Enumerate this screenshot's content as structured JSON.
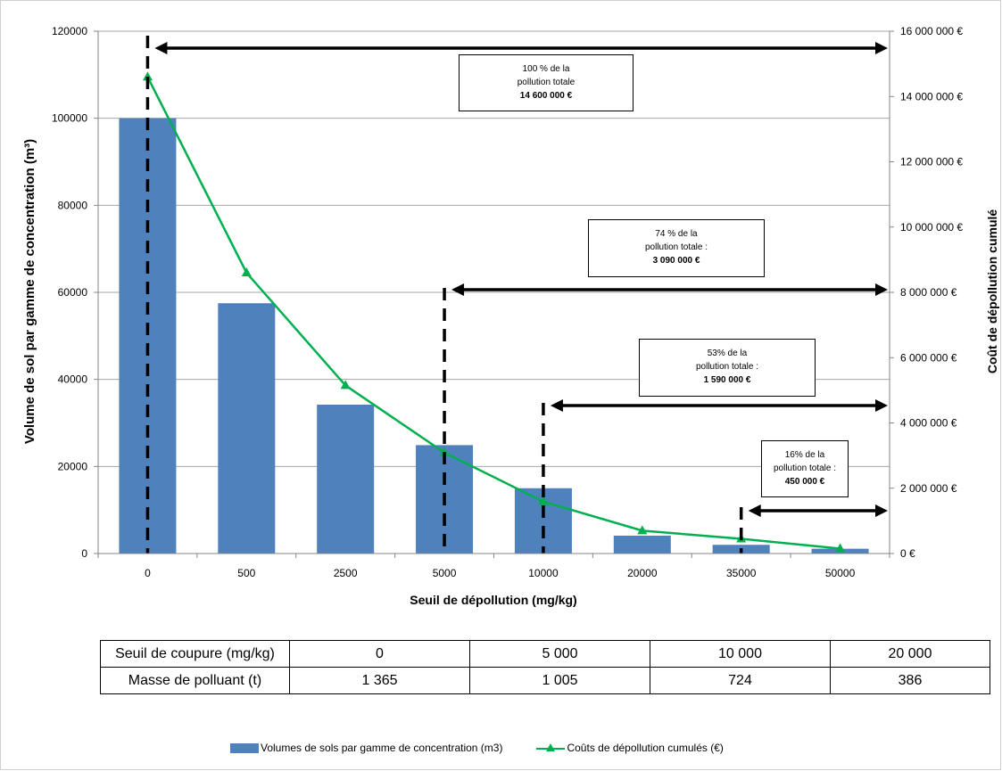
{
  "chart_data": {
    "type": "bar",
    "categories": [
      "0",
      "500",
      "2500",
      "5000",
      "10000",
      "20000",
      "35000",
      "50000"
    ],
    "series": [
      {
        "name": "Volumes de sols par gamme de concentration (m3)",
        "axis": "left",
        "type": "bar",
        "color": "#4f81bd",
        "values": [
          100000,
          57500,
          34200,
          24900,
          15000,
          4100,
          2000,
          1100
        ]
      },
      {
        "name": "Coûts de dépollution cumulés (€)",
        "axis": "right",
        "type": "line",
        "color": "#00b050",
        "values": [
          14600000,
          8600000,
          5150000,
          3090000,
          1590000,
          700000,
          450000,
          150000
        ]
      }
    ],
    "xlabel": "Seuil de  dépollution  (mg/kg)",
    "ylabel_left": "Volume de sol par gamme de concentration  (m³)",
    "ylabel_right": "Coût de dépollution cumulé",
    "ylim_left": [
      0,
      120000
    ],
    "yticks_left": [
      "0",
      "20000",
      "40000",
      "60000",
      "80000",
      "100000",
      "120000"
    ],
    "ylim_right": [
      0,
      16000000
    ],
    "yticks_right": [
      "0 €",
      "2 000 000 €",
      "4 000 000 €",
      "6 000 000 €",
      "8 000 000 €",
      "10 000 000 €",
      "12 000 000 €",
      "14 000 000 €",
      "16 000 000 €"
    ],
    "grid": true,
    "legend_position": "bottom",
    "annotations": [
      {
        "line1": "100 % de la",
        "line2": "pollution totale",
        "amount": "14 600 000 €",
        "from_category": "0"
      },
      {
        "line1": "74 % de la",
        "line2": "pollution totale :",
        "amount": "3 090 000 €",
        "from_category": "5000"
      },
      {
        "line1": "53% de la",
        "line2": "pollution totale :",
        "amount": "1 590 000 €",
        "from_category": "10000"
      },
      {
        "line1": "16% de la",
        "line2": "pollution totale :",
        "amount": "450 000 €",
        "from_category": "35000"
      }
    ]
  },
  "table": {
    "rows": [
      {
        "label": "Seuil de coupure (mg/kg)",
        "values": [
          "0",
          "5 000",
          "10 000",
          "20 000"
        ]
      },
      {
        "label": "Masse de polluant (t)",
        "values": [
          "1 365",
          "1 005",
          "724",
          "386"
        ]
      }
    ]
  },
  "legend": {
    "bar_label": "Volumes de sols par gamme de concentration (m3)",
    "line_label": "Coûts de dépollution cumulés (€)"
  }
}
